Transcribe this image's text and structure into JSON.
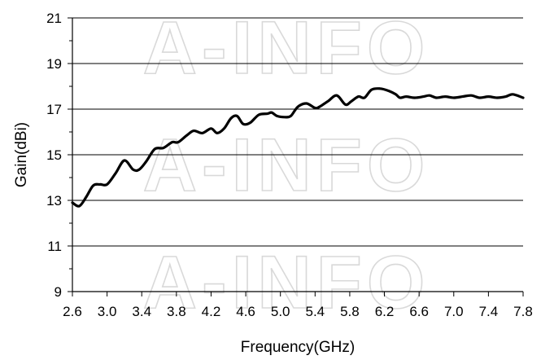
{
  "watermark_text": "A-INFO",
  "chart_data": {
    "type": "line",
    "title": "",
    "xlabel": "Frequency(GHz)",
    "ylabel": "Gain(dBi)",
    "xlim": [
      2.6,
      7.8
    ],
    "ylim": [
      9,
      21
    ],
    "xticks": [
      2.6,
      3.0,
      3.4,
      3.8,
      4.2,
      4.6,
      5.0,
      5.4,
      5.8,
      6.2,
      6.6,
      7.0,
      7.4,
      7.8
    ],
    "xtick_labels": [
      "2.6",
      "3.0",
      "3.4",
      "3.8",
      "4.2",
      "4.6",
      "5.0",
      "5.4",
      "5.8",
      "6.2",
      "6.6",
      "7.0",
      "7.4",
      "7.8"
    ],
    "yticks": [
      9,
      11,
      13,
      15,
      17,
      19,
      21
    ],
    "ytick_labels": [
      "9",
      "11",
      "13",
      "15",
      "17",
      "19",
      "21"
    ],
    "grid": "horizontal",
    "series": [
      {
        "color": "#000000",
        "x": [
          2.6,
          2.68,
          2.76,
          2.84,
          2.92,
          3.0,
          3.1,
          3.2,
          3.3,
          3.37,
          3.45,
          3.55,
          3.65,
          3.75,
          3.82,
          3.92,
          4.0,
          4.1,
          4.2,
          4.27,
          4.35,
          4.43,
          4.5,
          4.57,
          4.65,
          4.75,
          4.85,
          4.9,
          4.96,
          5.05,
          5.12,
          5.2,
          5.3,
          5.4,
          5.45,
          5.55,
          5.65,
          5.75,
          5.82,
          5.9,
          5.97,
          6.05,
          6.15,
          6.25,
          6.33,
          6.38,
          6.45,
          6.55,
          6.65,
          6.72,
          6.8,
          6.9,
          7.0,
          7.1,
          7.2,
          7.3,
          7.4,
          7.5,
          7.6,
          7.68,
          7.8
        ],
        "y": [
          12.9,
          12.75,
          13.15,
          13.65,
          13.7,
          13.7,
          14.2,
          14.75,
          14.35,
          14.35,
          14.7,
          15.25,
          15.3,
          15.55,
          15.55,
          15.85,
          16.05,
          15.95,
          16.15,
          15.95,
          16.15,
          16.6,
          16.7,
          16.35,
          16.4,
          16.75,
          16.8,
          16.85,
          16.7,
          16.65,
          16.7,
          17.1,
          17.25,
          17.05,
          17.1,
          17.35,
          17.6,
          17.2,
          17.35,
          17.55,
          17.5,
          17.85,
          17.9,
          17.8,
          17.65,
          17.5,
          17.55,
          17.5,
          17.55,
          17.6,
          17.5,
          17.55,
          17.5,
          17.55,
          17.6,
          17.5,
          17.55,
          17.5,
          17.55,
          17.65,
          17.5
        ]
      }
    ]
  }
}
